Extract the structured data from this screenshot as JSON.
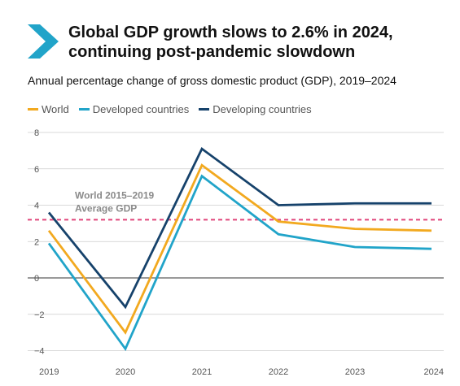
{
  "header": {
    "title_line1": "Global GDP growth slows to 2.6% in 2024,",
    "title_line2": "continuing post-pandemic slowdown",
    "subtitle": "Annual percentage change of gross domestic product (GDP), 2019–2024"
  },
  "reference_label": {
    "line1": "World 2015–2019",
    "line2": "Average GDP"
  },
  "chart_data": {
    "type": "line",
    "title": "Global GDP growth slows to 2.6% in 2024, continuing post-pandemic slowdown",
    "subtitle": "Annual percentage change of gross domestic product (GDP), 2019–2024",
    "categories": [
      "2019",
      "2020",
      "2021",
      "2022",
      "2023",
      "2024"
    ],
    "series": [
      {
        "name": "World",
        "color": "#f2a91f",
        "values": [
          2.6,
          -3.0,
          6.2,
          3.1,
          2.7,
          2.6
        ]
      },
      {
        "name": "Developed countries",
        "color": "#21a4c9",
        "values": [
          1.9,
          -3.9,
          5.6,
          2.4,
          1.7,
          1.6
        ]
      },
      {
        "name": "Developing countries",
        "color": "#16426b",
        "values": [
          3.6,
          -1.6,
          7.1,
          4.0,
          4.1,
          4.1
        ]
      }
    ],
    "reference_line": {
      "value": 3.2,
      "color": "#e0457b",
      "style": "dashed",
      "label": "World 2015–2019 Average GDP"
    },
    "yticks": [
      -4,
      -2,
      0,
      2,
      4,
      6,
      8
    ],
    "ylim": [
      -4.5,
      8
    ],
    "grid": "horizontal",
    "legend_position": "top-left",
    "colors": {
      "accent": "#21a4c9",
      "grid": "#cccccc",
      "zero_line": "#333333"
    }
  }
}
